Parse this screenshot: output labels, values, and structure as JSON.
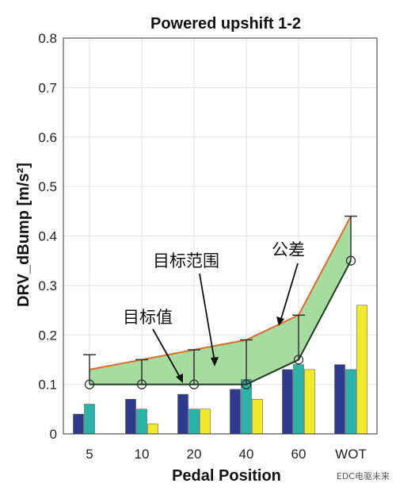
{
  "chart_data": {
    "type": "bar",
    "title": "Powered upshift 1-2",
    "xlabel": "Pedal Position",
    "ylabel": "DRV_dBump [m/s²]",
    "ylim": [
      0,
      0.8
    ],
    "yticks": [
      "0",
      "0.1",
      "0.2",
      "0.3",
      "0.4",
      "0.5",
      "0.6",
      "0.7",
      "0.8"
    ],
    "categories": [
      "5",
      "10",
      "20",
      "40",
      "60",
      "WOT"
    ],
    "grid": true,
    "series": [
      {
        "color": "#2e3a8c",
        "values": [
          0.04,
          0.07,
          0.08,
          0.09,
          0.13,
          0.14
        ]
      },
      {
        "color": "#2bb3a8",
        "values": [
          0.06,
          0.05,
          0.05,
          0.11,
          0.14,
          0.13
        ]
      },
      {
        "color": "#f2ea2e",
        "values": [
          0,
          0.02,
          0.05,
          0.07,
          0.13,
          0.26
        ]
      }
    ],
    "target": [
      0.1,
      0.1,
      0.1,
      0.1,
      0.15,
      0.35
    ],
    "tolerance_upper": [
      0.16,
      0.15,
      0.17,
      0.19,
      0.24,
      0.44
    ],
    "range_upper": [
      0.13,
      0.15,
      0.17,
      0.19,
      0.24,
      0.44
    ],
    "annotations": {
      "target_range": "目标范围",
      "tolerance": "公差",
      "target_value": "目标值"
    },
    "colors": {
      "band": "#a6dca0",
      "upper_line": "#e06a2a",
      "target_line": "#1f3a1f",
      "errorbar": "#333333"
    }
  },
  "watermark": "EDC电驱未来"
}
